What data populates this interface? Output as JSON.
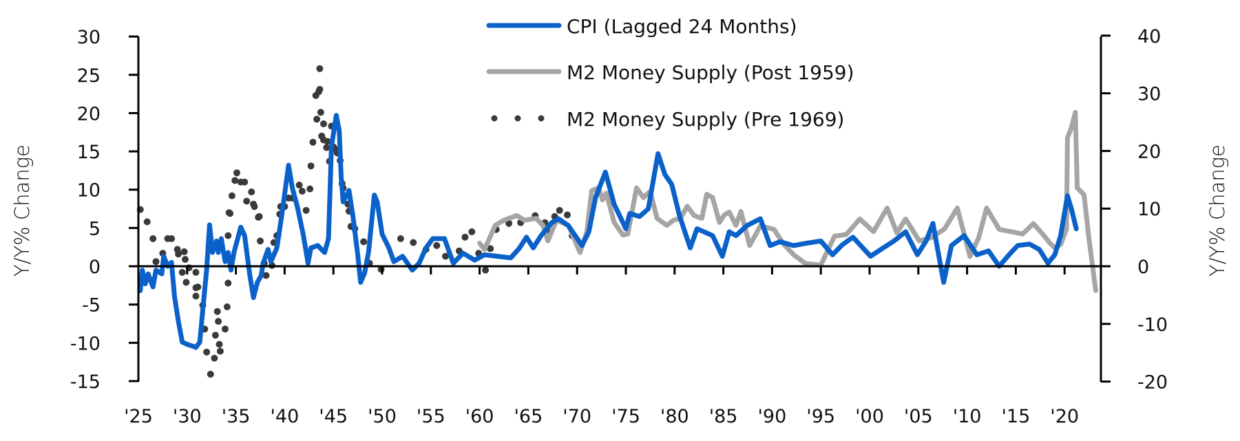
{
  "chart_data": {
    "type": "line",
    "title": "",
    "xlabel": "",
    "ylabel_left": "Y/Y% Change",
    "ylabel_right": "Y/Y% Change",
    "xlim": [
      1925,
      2023.5
    ],
    "ylim_left": [
      -15,
      30
    ],
    "ylim_right": [
      -20,
      40
    ],
    "x_ticks": [
      1925,
      1930,
      1935,
      1940,
      1945,
      1950,
      1955,
      1960,
      1965,
      1970,
      1975,
      1980,
      1985,
      1990,
      1995,
      2000,
      2005,
      2010,
      2015,
      2020
    ],
    "x_tick_labels": [
      "'25",
      "'30",
      "'35",
      "'40",
      "'45",
      "'50",
      "'55",
      "'60",
      "'65",
      "'70",
      "'75",
      "'80",
      "'85",
      "'90",
      "'95",
      "'00",
      "'05",
      "'10",
      "'15",
      "'20"
    ],
    "y_ticks_left": [
      30,
      25,
      20,
      15,
      10,
      5,
      0,
      -5,
      -10,
      -15
    ],
    "y_tick_labels_left": [
      "30",
      "25",
      "20",
      "15",
      "10",
      "5",
      "0",
      "-5",
      "-10",
      "-15"
    ],
    "y_ticks_right": [
      40,
      30,
      20,
      10,
      0,
      -10,
      -20
    ],
    "y_tick_labels_right": [
      "40",
      "30",
      "20",
      "10",
      "0",
      "-10",
      "-20"
    ],
    "grid": false,
    "legend_position": "top-center",
    "colors": {
      "cpi": "#0A61C9",
      "m2_post": "#A5A5A5",
      "m2_pre": "#3A3A3A",
      "axis": "#000000"
    },
    "series": [
      {
        "name": "CPI (Lagged 24 Months)",
        "axis": "left",
        "style": "solid",
        "x": [
          1925.2,
          1925.4,
          1925.7,
          1926.0,
          1926.5,
          1926.8,
          1927.4,
          1927.6,
          1928.0,
          1928.4,
          1928.7,
          1929.1,
          1929.5,
          1930.0,
          1930.5,
          1930.9,
          1931.3,
          1931.6,
          1932.0,
          1932.3,
          1932.6,
          1933.0,
          1933.2,
          1933.5,
          1933.9,
          1934.2,
          1934.5,
          1934.8,
          1935.5,
          1935.9,
          1936.4,
          1936.8,
          1937.2,
          1937.6,
          1937.8,
          1938.3,
          1938.6,
          1939.2,
          1939.7,
          1940.4,
          1940.8,
          1941.3,
          1941.9,
          1942.4,
          1942.7,
          1943.4,
          1944.1,
          1944.5,
          1944.8,
          1945.3,
          1945.6,
          1945.8,
          1946.0,
          1946.6,
          1947.0,
          1947.5,
          1947.8,
          1948.2,
          1948.6,
          1949.2,
          1949.5,
          1950.0,
          1950.7,
          1951.2,
          1952.1,
          1953.1,
          1953.8,
          1954.5,
          1955.2,
          1955.8,
          1956.4,
          1957.3,
          1958.3,
          1959.5,
          1960.5,
          1961.8,
          1963.2,
          1964.1,
          1964.8,
          1965.5,
          1966.3,
          1967.4,
          1968.1,
          1969.1,
          1970.5,
          1971.2,
          1971.9,
          1972.9,
          1973.8,
          1975.0,
          1975.4,
          1976.4,
          1977.3,
          1978.3,
          1979.0,
          1979.7,
          1980.5,
          1981.6,
          1982.3,
          1983.9,
          1984.9,
          1985.6,
          1986.3,
          1987.4,
          1988.8,
          1989.8,
          1990.8,
          1992.2,
          1993.5,
          1995.0,
          1996.2,
          1997.2,
          1998.3,
          2000.1,
          2001.4,
          2002.5,
          2003.7,
          2004.9,
          2005.8,
          2006.5,
          2007.6,
          2008.4,
          2009.7,
          2011.0,
          2012.2,
          2013.3,
          2014.3,
          2015.2,
          2016.4,
          2017.4,
          2018.3,
          2019.0,
          2019.6,
          2020.3,
          2020.7,
          2021.2
        ],
        "y": [
          -3.2,
          -0.5,
          -2.3,
          -1.0,
          -2.7,
          -0.5,
          -1.0,
          1.3,
          0.0,
          0.5,
          -3.9,
          -7.2,
          -9.9,
          -10.2,
          -10.4,
          -10.6,
          -9.9,
          -5.7,
          -0.5,
          5.4,
          1.8,
          3.3,
          1.8,
          3.6,
          0.6,
          1.8,
          -0.5,
          1.8,
          5.1,
          4.0,
          -0.9,
          -4.1,
          -2.1,
          -1.2,
          0.4,
          2.2,
          0.6,
          2.4,
          6.6,
          13.2,
          10.2,
          7.8,
          4.2,
          0.4,
          2.4,
          2.7,
          1.8,
          3.6,
          15.6,
          19.7,
          17.7,
          11.7,
          8.4,
          9.9,
          6.6,
          1.5,
          -2.1,
          -0.9,
          1.8,
          9.3,
          8.4,
          4.2,
          2.4,
          0.6,
          1.3,
          -0.5,
          0.4,
          2.4,
          3.6,
          3.6,
          3.6,
          0.4,
          1.7,
          0.8,
          1.5,
          1.3,
          1.1,
          2.4,
          3.8,
          2.4,
          4.0,
          5.7,
          6.2,
          5.3,
          2.7,
          4.5,
          9.0,
          12.3,
          8.1,
          4.9,
          6.9,
          6.5,
          7.5,
          14.7,
          12.0,
          10.7,
          6.6,
          2.4,
          4.9,
          4.0,
          1.3,
          4.5,
          4.0,
          5.3,
          6.2,
          2.7,
          3.2,
          2.7,
          3.0,
          3.3,
          1.5,
          2.8,
          3.8,
          1.3,
          2.4,
          3.3,
          4.5,
          1.5,
          3.3,
          5.6,
          -2.1,
          2.7,
          4.0,
          1.5,
          2.0,
          0.0,
          1.5,
          2.7,
          2.9,
          2.2,
          0.4,
          1.5,
          4.0,
          9.2,
          7.5,
          4.9
        ]
      },
      {
        "name": "M2 Money Supply (Post 1959)",
        "axis": "right",
        "style": "solid",
        "x": [
          1960.0,
          1960.5,
          1961.6,
          1962.5,
          1963.8,
          1964.6,
          1965.8,
          1966.5,
          1967.0,
          1967.9,
          1969.1,
          1970.3,
          1971.0,
          1971.5,
          1972.2,
          1972.6,
          1973.0,
          1973.8,
          1974.7,
          1975.2,
          1976.1,
          1976.8,
          1977.5,
          1978.2,
          1979.2,
          1979.9,
          1980.6,
          1981.3,
          1982.0,
          1982.8,
          1983.3,
          1983.9,
          1984.6,
          1985.1,
          1985.6,
          1986.3,
          1986.8,
          1987.7,
          1988.8,
          1990.2,
          1991.2,
          1992.2,
          1993.4,
          1995.0,
          1996.4,
          1997.6,
          1999.0,
          2000.4,
          2001.8,
          2002.8,
          2003.7,
          2005.1,
          2006.4,
          2007.7,
          2009.0,
          2010.3,
          2011.2,
          2012.0,
          2013.3,
          2014.5,
          2015.7,
          2016.8,
          2017.8,
          2018.5,
          2019.0,
          2019.6,
          2020.2,
          2020.3,
          2020.7,
          2021.1,
          2021.3,
          2022.0,
          2022.5,
          2023.2
        ],
        "y": [
          4.0,
          2.9,
          7.1,
          8.0,
          8.8,
          8.0,
          8.3,
          7.1,
          4.4,
          8.0,
          7.1,
          2.4,
          6.0,
          13.1,
          13.6,
          11.5,
          12.7,
          7.6,
          5.4,
          5.6,
          13.6,
          11.9,
          13.0,
          8.3,
          7.1,
          8.0,
          8.3,
          10.4,
          8.8,
          8.3,
          12.5,
          11.9,
          7.6,
          8.9,
          9.4,
          7.1,
          9.5,
          3.6,
          7.0,
          6.4,
          3.8,
          2.0,
          0.5,
          0.2,
          5.2,
          5.5,
          8.2,
          6.0,
          10.1,
          5.8,
          8.2,
          4.4,
          5.0,
          6.5,
          10.1,
          1.7,
          5.0,
          10.1,
          6.4,
          6.0,
          5.6,
          7.4,
          5.5,
          4.0,
          3.2,
          3.8,
          6.4,
          22.3,
          24.0,
          26.7,
          13.6,
          12.4,
          4.8,
          -4.2
        ]
      },
      {
        "name": "M2 Money Supply (Pre 1969)",
        "axis": "left",
        "style": "dots",
        "x": [
          1925.2,
          1925.9,
          1926.5,
          1926.8,
          1927.5,
          1928.0,
          1928.4,
          1929.0,
          1929.1,
          1929.5,
          1929.7,
          1929.8,
          1929.9,
          1930.2,
          1930.9,
          1930.9,
          1931.1,
          1930.9,
          1931.6,
          1931.8,
          1932.0,
          1932.4,
          1932.8,
          1932.9,
          1933.1,
          1933.2,
          1933.3,
          1933.4,
          1933.9,
          1934.1,
          1934.2,
          1934.2,
          1934.2,
          1934.3,
          1934.4,
          1934.6,
          1934.9,
          1935.1,
          1935.5,
          1935.9,
          1936.1,
          1936.6,
          1936.8,
          1936.9,
          1937.3,
          1937.4,
          1937.5,
          1937.9,
          1938.1,
          1938.7,
          1938.9,
          1939.2,
          1939.3,
          1939.5,
          1939.6,
          1940.0,
          1940.4,
          1940.8,
          1941.5,
          1941.8,
          1942.2,
          1942.6,
          1942.7,
          1942.9,
          1943.2,
          1943.3,
          1943.5,
          1943.6,
          1943.6,
          1943.7,
          1943.8,
          1944.0,
          1944.0,
          1944.3,
          1944.4,
          1944.6,
          1944.8,
          1945.0,
          1945.2,
          1945.4,
          1945.5,
          1945.7,
          1945.9,
          1946.0,
          1946.5,
          1946.6,
          1946.8,
          1947.2,
          1948.1,
          1948.7,
          1949.9,
          1951.9,
          1953.2,
          1954.5,
          1955.6,
          1956.5,
          1957.9,
          1958.5,
          1959.2,
          1959.9,
          1960.6,
          1961.1,
          1961.7,
          1963.0,
          1964.2,
          1965.7,
          1966.7,
          1967.2,
          1967.7,
          1968.2,
          1969.0,
          1969.5
        ],
        "y": [
          7.4,
          5.8,
          3.6,
          0.6,
          1.7,
          3.6,
          3.6,
          2.2,
          1.6,
          -0.8,
          1.9,
          0.9,
          -2.1,
          -0.2,
          -2.8,
          -0.8,
          -2.7,
          -3.9,
          -5.1,
          -8.2,
          -11.2,
          -14.1,
          -12.0,
          -9.0,
          -5.9,
          -7.2,
          -10.2,
          -11.1,
          -8.2,
          -5.3,
          -2.2,
          0.9,
          4.0,
          7.0,
          6.9,
          9.2,
          11.2,
          12.2,
          11.0,
          11.0,
          8.5,
          9.7,
          8.1,
          7.8,
          6.4,
          6.5,
          3.3,
          0.4,
          -1.2,
          0.1,
          3.1,
          4.0,
          4.0,
          6.8,
          7.8,
          7.8,
          8.9,
          8.9,
          10.6,
          9.8,
          7.3,
          10.1,
          13.1,
          16.2,
          22.3,
          19.2,
          22.8,
          23.1,
          25.8,
          20.1,
          17.0,
          18.6,
          16.5,
          15.5,
          16.3,
          13.7,
          18.3,
          15.6,
          15.3,
          14.8,
          15.0,
          13.8,
          10.8,
          10.2,
          8.1,
          7.2,
          5.2,
          4.9,
          3.2,
          0.4,
          -0.4,
          3.6,
          3.1,
          2.2,
          2.7,
          1.3,
          2.0,
          3.8,
          4.5,
          1.7,
          -0.5,
          2.3,
          4.8,
          5.6,
          5.7,
          6.6,
          5.7,
          4.4,
          6.5,
          7.3,
          6.7,
          4.0
        ]
      }
    ]
  },
  "legend": {
    "items": [
      {
        "label": "CPI (Lagged 24 Months)",
        "marker": "solid-line"
      },
      {
        "label": "M2 Money Supply (Post 1959)",
        "marker": "solid-line"
      },
      {
        "label": "M2 Money Supply (Pre 1969)",
        "marker": "dotted-line"
      }
    ]
  }
}
